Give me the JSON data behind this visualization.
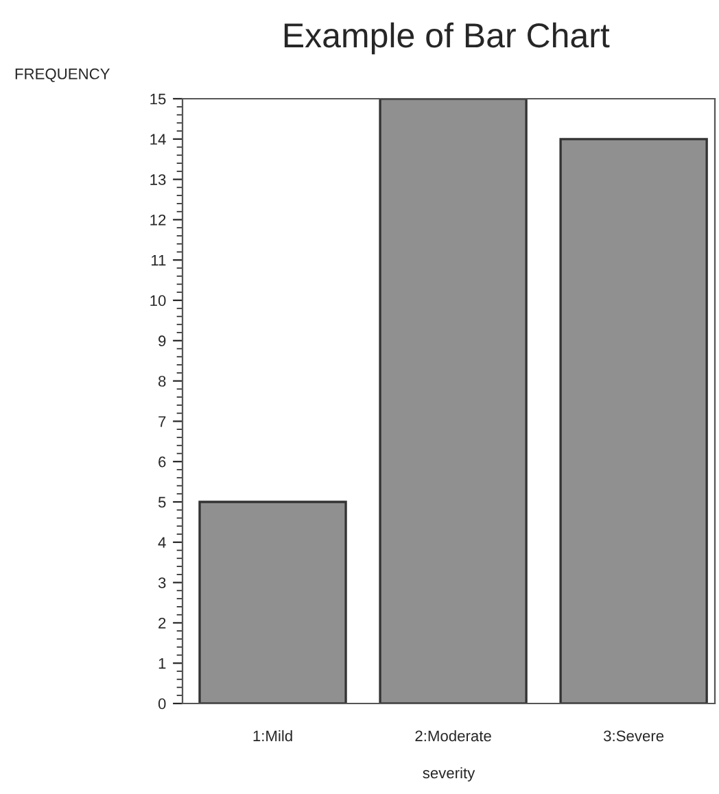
{
  "chart_data": {
    "type": "bar",
    "title": "Example of Bar Chart",
    "xlabel": "severity",
    "ylabel": "FREQUENCY",
    "categories": [
      "1:Mild",
      "2:Moderate",
      "3:Severe"
    ],
    "values": [
      5,
      15,
      14
    ],
    "color": "#909090",
    "ylim": [
      0,
      15
    ],
    "yticks": [
      0,
      1,
      2,
      3,
      4,
      5,
      6,
      7,
      8,
      9,
      10,
      11,
      12,
      13,
      14,
      15
    ],
    "grid": false
  }
}
